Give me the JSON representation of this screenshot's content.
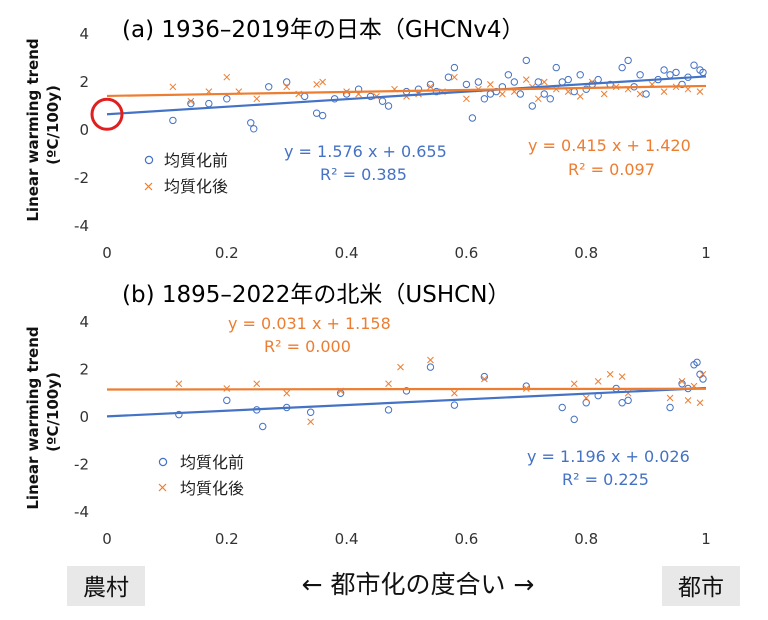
{
  "chart_data": [
    {
      "type": "scatter",
      "title": "(a) 1936–2019年の日本（GHCNv4）",
      "ylabel": "Linear warming trend",
      "ylabel_unit": "(ºC/100y)",
      "xlim": [
        0,
        1
      ],
      "ylim": [
        -4,
        4
      ],
      "x_ticks": [
        "0",
        "0.2",
        "0.4",
        "0.6",
        "0.8",
        "1"
      ],
      "y_ticks": [
        "4",
        "2",
        "0",
        "-2",
        "-4"
      ],
      "grid": false,
      "legend_position": "left-middle",
      "annotation_circle": {
        "x": 0,
        "y": 0.655,
        "color": "#e02020"
      },
      "series": [
        {
          "name": "均質化前",
          "marker": "circle",
          "color": "#4472c4",
          "trendline": {
            "equation": "y = 1.576 x + 0.655",
            "r2": "R² = 0.385",
            "slope": 1.576,
            "intercept": 0.655
          },
          "points": [
            [
              0.11,
              0.4
            ],
            [
              0.14,
              1.1
            ],
            [
              0.17,
              1.1
            ],
            [
              0.2,
              1.3
            ],
            [
              0.24,
              0.3
            ],
            [
              0.245,
              0.05
            ],
            [
              0.27,
              1.8
            ],
            [
              0.3,
              2.0
            ],
            [
              0.33,
              1.4
            ],
            [
              0.35,
              0.7
            ],
            [
              0.36,
              0.6
            ],
            [
              0.38,
              1.3
            ],
            [
              0.4,
              1.5
            ],
            [
              0.42,
              1.7
            ],
            [
              0.44,
              1.4
            ],
            [
              0.46,
              1.2
            ],
            [
              0.47,
              1.0
            ],
            [
              0.5,
              1.6
            ],
            [
              0.52,
              1.7
            ],
            [
              0.54,
              1.9
            ],
            [
              0.55,
              1.6
            ],
            [
              0.57,
              2.2
            ],
            [
              0.58,
              2.6
            ],
            [
              0.6,
              1.9
            ],
            [
              0.61,
              0.5
            ],
            [
              0.62,
              2.0
            ],
            [
              0.63,
              1.3
            ],
            [
              0.64,
              1.5
            ],
            [
              0.65,
              1.6
            ],
            [
              0.66,
              1.8
            ],
            [
              0.67,
              2.3
            ],
            [
              0.68,
              2.0
            ],
            [
              0.69,
              1.5
            ],
            [
              0.7,
              2.9
            ],
            [
              0.71,
              1.0
            ],
            [
              0.72,
              2.0
            ],
            [
              0.73,
              1.5
            ],
            [
              0.74,
              1.3
            ],
            [
              0.75,
              2.6
            ],
            [
              0.76,
              2.0
            ],
            [
              0.77,
              2.1
            ],
            [
              0.78,
              1.6
            ],
            [
              0.79,
              2.3
            ],
            [
              0.8,
              1.7
            ],
            [
              0.81,
              1.9
            ],
            [
              0.82,
              2.1
            ],
            [
              0.84,
              1.9
            ],
            [
              0.86,
              2.6
            ],
            [
              0.87,
              2.9
            ],
            [
              0.88,
              1.8
            ],
            [
              0.89,
              2.3
            ],
            [
              0.9,
              1.5
            ],
            [
              0.92,
              2.1
            ],
            [
              0.93,
              2.5
            ],
            [
              0.94,
              2.3
            ],
            [
              0.95,
              2.4
            ],
            [
              0.96,
              1.9
            ],
            [
              0.97,
              2.2
            ],
            [
              0.98,
              2.7
            ],
            [
              0.99,
              2.5
            ],
            [
              0.995,
              2.4
            ]
          ]
        },
        {
          "name": "均質化後",
          "marker": "x",
          "color": "#ed7d31",
          "trendline": {
            "equation": "y = 0.415 x + 1.420",
            "r2": "R² = 0.097",
            "slope": 0.415,
            "intercept": 1.42
          },
          "points": [
            [
              0.11,
              1.8
            ],
            [
              0.14,
              1.2
            ],
            [
              0.17,
              1.6
            ],
            [
              0.2,
              2.2
            ],
            [
              0.22,
              1.6
            ],
            [
              0.25,
              1.3
            ],
            [
              0.3,
              1.8
            ],
            [
              0.32,
              1.5
            ],
            [
              0.35,
              1.9
            ],
            [
              0.36,
              2.0
            ],
            [
              0.4,
              1.6
            ],
            [
              0.42,
              1.5
            ],
            [
              0.45,
              1.4
            ],
            [
              0.48,
              1.7
            ],
            [
              0.5,
              1.4
            ],
            [
              0.52,
              1.5
            ],
            [
              0.54,
              1.8
            ],
            [
              0.56,
              1.6
            ],
            [
              0.58,
              2.2
            ],
            [
              0.6,
              1.3
            ],
            [
              0.62,
              1.7
            ],
            [
              0.64,
              1.9
            ],
            [
              0.66,
              1.5
            ],
            [
              0.68,
              1.6
            ],
            [
              0.7,
              2.1
            ],
            [
              0.71,
              1.8
            ],
            [
              0.72,
              1.3
            ],
            [
              0.73,
              2.0
            ],
            [
              0.75,
              1.7
            ],
            [
              0.77,
              1.6
            ],
            [
              0.79,
              1.4
            ],
            [
              0.81,
              2.0
            ],
            [
              0.83,
              1.5
            ],
            [
              0.85,
              1.8
            ],
            [
              0.87,
              1.7
            ],
            [
              0.89,
              1.5
            ],
            [
              0.91,
              1.9
            ],
            [
              0.93,
              1.6
            ],
            [
              0.95,
              1.8
            ],
            [
              0.97,
              1.7
            ],
            [
              0.99,
              1.6
            ]
          ]
        }
      ]
    },
    {
      "type": "scatter",
      "title": "(b) 1895–2022年の北米（USHCN）",
      "ylabel": "Linear warming trend",
      "ylabel_unit": "(ºC/100y)",
      "xlim": [
        0,
        1
      ],
      "ylim": [
        -4,
        4
      ],
      "x_ticks": [
        "0",
        "0.2",
        "0.4",
        "0.6",
        "0.8",
        "1"
      ],
      "y_ticks": [
        "4",
        "2",
        "0",
        "-2",
        "-4"
      ],
      "grid": false,
      "legend_position": "left-bottom",
      "series": [
        {
          "name": "均質化前",
          "marker": "circle",
          "color": "#4472c4",
          "trendline": {
            "equation": "y = 1.196 x + 0.026",
            "r2": "R² = 0.225",
            "slope": 1.196,
            "intercept": 0.026
          },
          "points": [
            [
              0.12,
              0.1
            ],
            [
              0.2,
              0.7
            ],
            [
              0.25,
              0.3
            ],
            [
              0.26,
              -0.4
            ],
            [
              0.3,
              0.4
            ],
            [
              0.34,
              0.2
            ],
            [
              0.39,
              1.0
            ],
            [
              0.47,
              0.3
            ],
            [
              0.5,
              1.1
            ],
            [
              0.54,
              2.1
            ],
            [
              0.58,
              0.5
            ],
            [
              0.63,
              1.7
            ],
            [
              0.7,
              1.3
            ],
            [
              0.76,
              0.4
            ],
            [
              0.78,
              -0.1
            ],
            [
              0.8,
              0.6
            ],
            [
              0.82,
              0.9
            ],
            [
              0.85,
              1.2
            ],
            [
              0.86,
              0.6
            ],
            [
              0.87,
              0.7
            ],
            [
              0.94,
              0.4
            ],
            [
              0.96,
              1.4
            ],
            [
              0.97,
              1.2
            ],
            [
              0.98,
              2.2
            ],
            [
              0.985,
              2.3
            ],
            [
              0.99,
              1.8
            ],
            [
              0.995,
              1.6
            ]
          ]
        },
        {
          "name": "均質化後",
          "marker": "x",
          "color": "#ed7d31",
          "trendline": {
            "equation": "y = 0.031 x + 1.158",
            "r2": "R² = 0.000",
            "slope": 0.031,
            "intercept": 1.158
          },
          "points": [
            [
              0.12,
              1.4
            ],
            [
              0.2,
              1.2
            ],
            [
              0.25,
              1.4
            ],
            [
              0.3,
              1.0
            ],
            [
              0.34,
              -0.2
            ],
            [
              0.39,
              1.1
            ],
            [
              0.47,
              1.4
            ],
            [
              0.49,
              2.1
            ],
            [
              0.54,
              2.4
            ],
            [
              0.58,
              1.0
            ],
            [
              0.63,
              1.6
            ],
            [
              0.7,
              1.2
            ],
            [
              0.78,
              1.4
            ],
            [
              0.8,
              0.8
            ],
            [
              0.82,
              1.5
            ],
            [
              0.84,
              1.8
            ],
            [
              0.86,
              1.7
            ],
            [
              0.87,
              1.0
            ],
            [
              0.94,
              0.8
            ],
            [
              0.96,
              1.5
            ],
            [
              0.97,
              0.7
            ],
            [
              0.98,
              1.3
            ],
            [
              0.99,
              0.6
            ],
            [
              0.995,
              1.8
            ]
          ]
        }
      ]
    }
  ],
  "footer": {
    "left_label": "農村",
    "right_label": "都市",
    "axis_label": "←  都市化の度合い  →"
  }
}
